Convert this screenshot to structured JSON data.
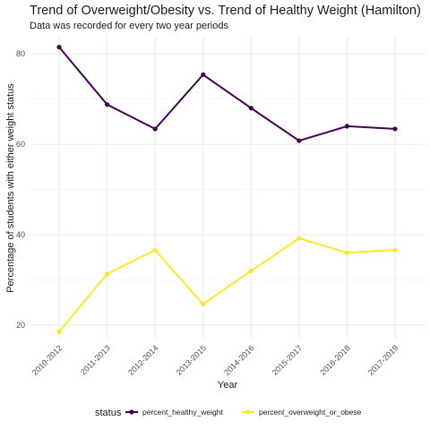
{
  "chart_data": {
    "type": "line",
    "title": "Trend of Overweight/Obesity vs. Trend of Healthy Weight (Hamilton)",
    "subtitle": "Data was recorded for every two year periods",
    "xlabel": "Year",
    "ylabel": "Percentage of students with either weight status",
    "categories": [
      "2010-2012",
      "2011-2013",
      "2012-2014",
      "2013-2015",
      "2014-2016",
      "2015-2017",
      "2016-2018",
      "2017-2019"
    ],
    "y_ticks": [
      20,
      40,
      60,
      80
    ],
    "ylim": [
      17,
      84
    ],
    "grid": true,
    "legend_position": "bottom",
    "legend_title": "status",
    "series": [
      {
        "name": "percent_healthy_weight",
        "color": "#440154",
        "values": [
          81.5,
          68.8,
          63.4,
          75.4,
          68.0,
          60.8,
          64.0,
          63.4
        ]
      },
      {
        "name": "percent_overweight_or_obese",
        "color": "#fde725",
        "values": [
          18.5,
          31.3,
          36.6,
          24.6,
          32.0,
          39.2,
          36.0,
          36.6
        ]
      }
    ]
  }
}
